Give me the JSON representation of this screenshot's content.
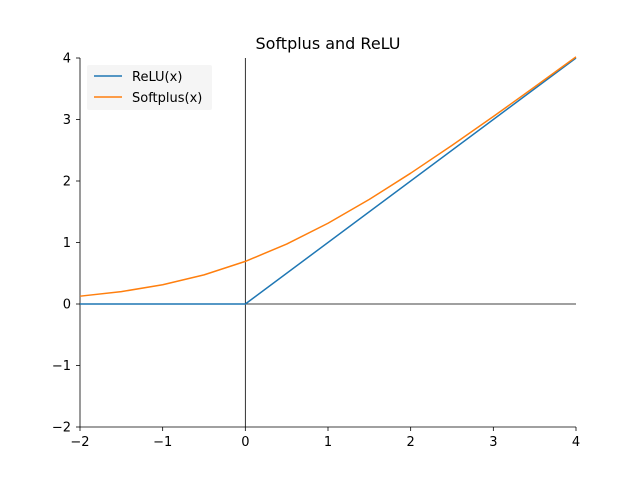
{
  "chart_data": {
    "type": "line",
    "title": "Softplus and ReLU",
    "xlabel": "",
    "ylabel": "",
    "xlim": [
      -2,
      4
    ],
    "ylim": [
      -2,
      4
    ],
    "x_ticks": [
      -2,
      -1,
      0,
      1,
      2,
      3,
      4
    ],
    "y_ticks": [
      -2,
      -1,
      0,
      1,
      2,
      3,
      4
    ],
    "x_tick_labels": [
      "−2",
      "−1",
      "0",
      "1",
      "2",
      "3",
      "4"
    ],
    "y_tick_labels": [
      "−2",
      "−1",
      "0",
      "1",
      "2",
      "3",
      "4"
    ],
    "grid": false,
    "legend_position": "top-left",
    "axis_style": "left and bottom spines plus zero axes at x=0 and y=0",
    "series": [
      {
        "name": "ReLU(x)",
        "color": "#1f77b4",
        "x": [
          -2,
          0,
          4
        ],
        "y": [
          0,
          0,
          4
        ]
      },
      {
        "name": "Softplus(x)",
        "color": "#ff7f0e",
        "x": [
          -2,
          -1.5,
          -1,
          -0.5,
          0,
          0.5,
          1,
          1.5,
          2,
          2.5,
          3,
          3.5,
          4
        ],
        "y": [
          0.127,
          0.201,
          0.313,
          0.474,
          0.693,
          0.974,
          1.313,
          1.701,
          2.127,
          2.579,
          3.049,
          3.53,
          4.018
        ]
      }
    ]
  }
}
